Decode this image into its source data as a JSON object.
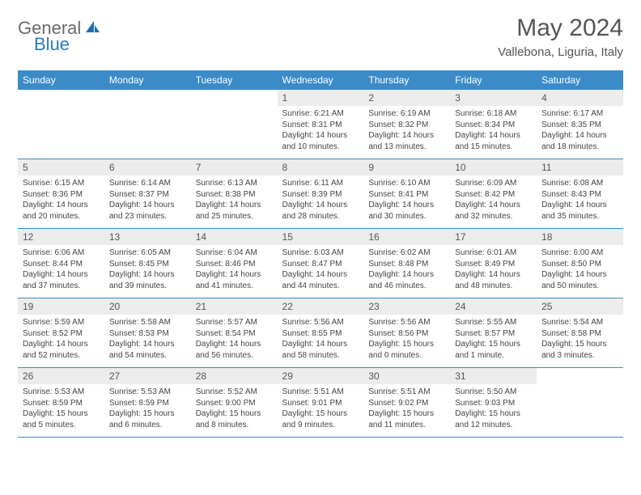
{
  "brand": {
    "part1": "General",
    "part2": "Blue"
  },
  "title": "May 2024",
  "location": "Vallebona, Liguria, Italy",
  "colors": {
    "header_bg": "#3b8bc9",
    "header_text": "#ffffff",
    "daynum_bg": "#ececec",
    "border": "#3b8bc9",
    "title_color": "#555555",
    "body_text": "#444444",
    "logo_gray": "#6a6a6a",
    "logo_blue": "#2b7bbf"
  },
  "typography": {
    "title_fontsize": 30,
    "location_fontsize": 15,
    "dayhead_fontsize": 12,
    "daynum_fontsize": 12,
    "body_fontsize": 10
  },
  "day_names": [
    "Sunday",
    "Monday",
    "Tuesday",
    "Wednesday",
    "Thursday",
    "Friday",
    "Saturday"
  ],
  "weeks": [
    [
      {
        "n": "",
        "sr": "",
        "ss": "",
        "dl": ""
      },
      {
        "n": "",
        "sr": "",
        "ss": "",
        "dl": ""
      },
      {
        "n": "",
        "sr": "",
        "ss": "",
        "dl": ""
      },
      {
        "n": "1",
        "sr": "Sunrise: 6:21 AM",
        "ss": "Sunset: 8:31 PM",
        "dl": "Daylight: 14 hours and 10 minutes."
      },
      {
        "n": "2",
        "sr": "Sunrise: 6:19 AM",
        "ss": "Sunset: 8:32 PM",
        "dl": "Daylight: 14 hours and 13 minutes."
      },
      {
        "n": "3",
        "sr": "Sunrise: 6:18 AM",
        "ss": "Sunset: 8:34 PM",
        "dl": "Daylight: 14 hours and 15 minutes."
      },
      {
        "n": "4",
        "sr": "Sunrise: 6:17 AM",
        "ss": "Sunset: 8:35 PM",
        "dl": "Daylight: 14 hours and 18 minutes."
      }
    ],
    [
      {
        "n": "5",
        "sr": "Sunrise: 6:15 AM",
        "ss": "Sunset: 8:36 PM",
        "dl": "Daylight: 14 hours and 20 minutes."
      },
      {
        "n": "6",
        "sr": "Sunrise: 6:14 AM",
        "ss": "Sunset: 8:37 PM",
        "dl": "Daylight: 14 hours and 23 minutes."
      },
      {
        "n": "7",
        "sr": "Sunrise: 6:13 AM",
        "ss": "Sunset: 8:38 PM",
        "dl": "Daylight: 14 hours and 25 minutes."
      },
      {
        "n": "8",
        "sr": "Sunrise: 6:11 AM",
        "ss": "Sunset: 8:39 PM",
        "dl": "Daylight: 14 hours and 28 minutes."
      },
      {
        "n": "9",
        "sr": "Sunrise: 6:10 AM",
        "ss": "Sunset: 8:41 PM",
        "dl": "Daylight: 14 hours and 30 minutes."
      },
      {
        "n": "10",
        "sr": "Sunrise: 6:09 AM",
        "ss": "Sunset: 8:42 PM",
        "dl": "Daylight: 14 hours and 32 minutes."
      },
      {
        "n": "11",
        "sr": "Sunrise: 6:08 AM",
        "ss": "Sunset: 8:43 PM",
        "dl": "Daylight: 14 hours and 35 minutes."
      }
    ],
    [
      {
        "n": "12",
        "sr": "Sunrise: 6:06 AM",
        "ss": "Sunset: 8:44 PM",
        "dl": "Daylight: 14 hours and 37 minutes."
      },
      {
        "n": "13",
        "sr": "Sunrise: 6:05 AM",
        "ss": "Sunset: 8:45 PM",
        "dl": "Daylight: 14 hours and 39 minutes."
      },
      {
        "n": "14",
        "sr": "Sunrise: 6:04 AM",
        "ss": "Sunset: 8:46 PM",
        "dl": "Daylight: 14 hours and 41 minutes."
      },
      {
        "n": "15",
        "sr": "Sunrise: 6:03 AM",
        "ss": "Sunset: 8:47 PM",
        "dl": "Daylight: 14 hours and 44 minutes."
      },
      {
        "n": "16",
        "sr": "Sunrise: 6:02 AM",
        "ss": "Sunset: 8:48 PM",
        "dl": "Daylight: 14 hours and 46 minutes."
      },
      {
        "n": "17",
        "sr": "Sunrise: 6:01 AM",
        "ss": "Sunset: 8:49 PM",
        "dl": "Daylight: 14 hours and 48 minutes."
      },
      {
        "n": "18",
        "sr": "Sunrise: 6:00 AM",
        "ss": "Sunset: 8:50 PM",
        "dl": "Daylight: 14 hours and 50 minutes."
      }
    ],
    [
      {
        "n": "19",
        "sr": "Sunrise: 5:59 AM",
        "ss": "Sunset: 8:52 PM",
        "dl": "Daylight: 14 hours and 52 minutes."
      },
      {
        "n": "20",
        "sr": "Sunrise: 5:58 AM",
        "ss": "Sunset: 8:53 PM",
        "dl": "Daylight: 14 hours and 54 minutes."
      },
      {
        "n": "21",
        "sr": "Sunrise: 5:57 AM",
        "ss": "Sunset: 8:54 PM",
        "dl": "Daylight: 14 hours and 56 minutes."
      },
      {
        "n": "22",
        "sr": "Sunrise: 5:56 AM",
        "ss": "Sunset: 8:55 PM",
        "dl": "Daylight: 14 hours and 58 minutes."
      },
      {
        "n": "23",
        "sr": "Sunrise: 5:56 AM",
        "ss": "Sunset: 8:56 PM",
        "dl": "Daylight: 15 hours and 0 minutes."
      },
      {
        "n": "24",
        "sr": "Sunrise: 5:55 AM",
        "ss": "Sunset: 8:57 PM",
        "dl": "Daylight: 15 hours and 1 minute."
      },
      {
        "n": "25",
        "sr": "Sunrise: 5:54 AM",
        "ss": "Sunset: 8:58 PM",
        "dl": "Daylight: 15 hours and 3 minutes."
      }
    ],
    [
      {
        "n": "26",
        "sr": "Sunrise: 5:53 AM",
        "ss": "Sunset: 8:59 PM",
        "dl": "Daylight: 15 hours and 5 minutes."
      },
      {
        "n": "27",
        "sr": "Sunrise: 5:53 AM",
        "ss": "Sunset: 8:59 PM",
        "dl": "Daylight: 15 hours and 6 minutes."
      },
      {
        "n": "28",
        "sr": "Sunrise: 5:52 AM",
        "ss": "Sunset: 9:00 PM",
        "dl": "Daylight: 15 hours and 8 minutes."
      },
      {
        "n": "29",
        "sr": "Sunrise: 5:51 AM",
        "ss": "Sunset: 9:01 PM",
        "dl": "Daylight: 15 hours and 9 minutes."
      },
      {
        "n": "30",
        "sr": "Sunrise: 5:51 AM",
        "ss": "Sunset: 9:02 PM",
        "dl": "Daylight: 15 hours and 11 minutes."
      },
      {
        "n": "31",
        "sr": "Sunrise: 5:50 AM",
        "ss": "Sunset: 9:03 PM",
        "dl": "Daylight: 15 hours and 12 minutes."
      },
      {
        "n": "",
        "sr": "",
        "ss": "",
        "dl": ""
      }
    ]
  ]
}
